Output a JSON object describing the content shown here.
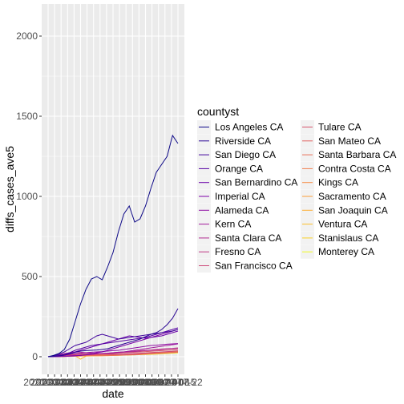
{
  "chart_data": {
    "type": "line",
    "xlabel": "date",
    "ylabel": "diffs_cases_ave5",
    "ylim": [
      -110,
      2200
    ],
    "yticks": [
      0,
      500,
      1000,
      1500,
      2000
    ],
    "ytick_labels": [
      "0",
      "500",
      "1000",
      "1500",
      "2000"
    ],
    "xtick_labels": [
      "2020-03-04",
      "2020-03-11",
      "2020-03-18",
      "2020-03-25",
      "2020-04-01",
      "2020-04-08",
      "2020-04-15",
      "2020-04-22",
      "2020-04-29",
      "2020-05-06",
      "2020-05-13",
      "2020-05-20",
      "2020-05-27",
      "2020-06-03",
      "2020-06-10",
      "2020-06-17",
      "2020-06-24",
      "2020-07-01",
      "2020-07-08",
      "2020-07-15",
      "2020-07-22"
    ],
    "grid": true,
    "legend": {
      "title": "countyst",
      "placement": "right"
    },
    "series": [
      {
        "name": "Los Angeles CA",
        "color": "#0d0887",
        "values": [
          0,
          8,
          20,
          45,
          110,
          220,
          330,
          420,
          485,
          500,
          480,
          560,
          650,
          780,
          890,
          940,
          840,
          860,
          940,
          1050,
          1150,
          1200,
          1250,
          1380,
          1330
        ]
      },
      {
        "name": "Riverside CA",
        "color": "#2a0593",
        "values": [
          0,
          2,
          5,
          10,
          18,
          28,
          35,
          38,
          40,
          42,
          45,
          50,
          60,
          70,
          80,
          90,
          100,
          110,
          125,
          140,
          150,
          170,
          200,
          240,
          300
        ]
      },
      {
        "name": "San Diego CA",
        "color": "#41049d",
        "values": [
          0,
          5,
          15,
          30,
          50,
          70,
          80,
          90,
          110,
          130,
          140,
          130,
          120,
          110,
          115,
          120,
          125,
          130,
          135,
          140,
          145,
          150,
          155,
          160,
          170
        ]
      },
      {
        "name": "Orange CA",
        "color": "#5601a4",
        "values": [
          0,
          3,
          8,
          15,
          25,
          40,
          50,
          60,
          70,
          75,
          80,
          85,
          90,
          95,
          100,
          105,
          110,
          115,
          120,
          130,
          140,
          150,
          160,
          170,
          180
        ]
      },
      {
        "name": "San Bernardino CA",
        "color": "#6a00a8",
        "values": [
          0,
          2,
          5,
          10,
          20,
          30,
          40,
          50,
          60,
          70,
          80,
          90,
          100,
          110,
          120,
          130,
          125,
          120,
          115,
          120,
          125,
          130,
          140,
          150,
          160
        ]
      },
      {
        "name": "Imperial CA",
        "color": "#7e03a8",
        "values": [
          0,
          0,
          1,
          2,
          3,
          5,
          8,
          12,
          18,
          25,
          30,
          40,
          50,
          60,
          70,
          80,
          90,
          100,
          110,
          120,
          130,
          140,
          150,
          160,
          170
        ]
      },
      {
        "name": "Alameda CA",
        "color": "#8f0da4",
        "values": [
          0,
          3,
          6,
          10,
          15,
          20,
          22,
          25,
          28,
          30,
          32,
          35,
          38,
          40,
          45,
          50,
          55,
          60,
          65,
          70,
          72,
          75,
          78,
          80,
          82
        ]
      },
      {
        "name": "Kern CA",
        "color": "#a11b9b",
        "values": [
          0,
          1,
          2,
          4,
          6,
          8,
          10,
          12,
          15,
          18,
          20,
          22,
          25,
          28,
          30,
          35,
          40,
          45,
          50,
          55,
          60,
          65,
          70,
          75,
          80
        ]
      },
      {
        "name": "Santa Clara CA",
        "color": "#b12a90",
        "values": [
          0,
          5,
          12,
          20,
          25,
          30,
          28,
          25,
          22,
          20,
          18,
          20,
          22,
          25,
          28,
          30,
          32,
          35,
          38,
          40,
          42,
          45,
          48,
          50,
          52
        ]
      },
      {
        "name": "Fresno CA",
        "color": "#bf3984",
        "values": [
          0,
          1,
          2,
          3,
          5,
          7,
          9,
          12,
          15,
          18,
          20,
          22,
          25,
          28,
          30,
          32,
          35,
          38,
          40,
          42,
          45,
          48,
          50,
          52,
          55
        ]
      },
      {
        "name": "San Francisco CA",
        "color": "#cc4778",
        "values": [
          0,
          3,
          6,
          10,
          12,
          15,
          18,
          20,
          22,
          20,
          18,
          16,
          15,
          15,
          16,
          18,
          20,
          22,
          24,
          26,
          28,
          30,
          32,
          34,
          36
        ]
      },
      {
        "name": "Tulare CA",
        "color": "#d6556d",
        "values": [
          0,
          0,
          1,
          2,
          4,
          6,
          8,
          10,
          12,
          14,
          16,
          18,
          20,
          22,
          24,
          26,
          28,
          30,
          32,
          34,
          36,
          38,
          40,
          42,
          44
        ]
      },
      {
        "name": "San Mateo CA",
        "color": "#e16462",
        "values": [
          0,
          2,
          4,
          6,
          8,
          10,
          12,
          14,
          15,
          16,
          15,
          14,
          13,
          12,
          13,
          14,
          15,
          16,
          17,
          18,
          20,
          22,
          24,
          26,
          28
        ]
      },
      {
        "name": "Santa Barbara CA",
        "color": "#e97158",
        "values": [
          0,
          1,
          2,
          3,
          5,
          8,
          10,
          9,
          8,
          7,
          6,
          7,
          8,
          9,
          10,
          11,
          12,
          14,
          16,
          18,
          20,
          22,
          24,
          26,
          28
        ]
      },
      {
        "name": "Contra Costa CA",
        "color": "#f07f4f",
        "values": [
          0,
          2,
          4,
          6,
          8,
          10,
          11,
          12,
          13,
          12,
          11,
          10,
          11,
          12,
          13,
          14,
          15,
          16,
          18,
          20,
          22,
          24,
          26,
          28,
          30
        ]
      },
      {
        "name": "Kings CA",
        "color": "#f68d45",
        "values": [
          0,
          0,
          0,
          1,
          2,
          3,
          4,
          5,
          6,
          7,
          8,
          9,
          10,
          12,
          14,
          16,
          18,
          20,
          22,
          24,
          26,
          28,
          30,
          32,
          34
        ]
      },
      {
        "name": "Sacramento CA",
        "color": "#fa9e3b",
        "values": [
          0,
          2,
          4,
          6,
          7,
          8,
          8,
          7,
          6,
          6,
          7,
          8,
          9,
          10,
          12,
          14,
          16,
          18,
          20,
          22,
          24,
          26,
          28,
          30,
          32
        ]
      },
      {
        "name": "San Joaquin CA",
        "color": "#fdad32",
        "values": [
          0,
          1,
          2,
          3,
          4,
          5,
          6,
          7,
          8,
          9,
          10,
          11,
          12,
          13,
          14,
          15,
          16,
          18,
          20,
          22,
          24,
          26,
          28,
          30,
          32
        ]
      },
      {
        "name": "Ventura CA",
        "color": "#fcbf2a",
        "values": [
          0,
          1,
          2,
          4,
          5,
          6,
          -15,
          4,
          5,
          6,
          7,
          8,
          9,
          10,
          11,
          12,
          13,
          14,
          16,
          18,
          20,
          22,
          24,
          26,
          28
        ]
      },
      {
        "name": "Stanislaus CA",
        "color": "#f9d124",
        "values": [
          0,
          1,
          2,
          3,
          4,
          5,
          6,
          6,
          7,
          7,
          8,
          8,
          9,
          10,
          11,
          12,
          13,
          14,
          15,
          16,
          18,
          20,
          22,
          24,
          26
        ]
      },
      {
        "name": "Monterey CA",
        "color": "#f0f921",
        "values": [
          0,
          0,
          1,
          2,
          3,
          4,
          5,
          5,
          6,
          6,
          7,
          7,
          8,
          9,
          10,
          11,
          12,
          13,
          14,
          15,
          16,
          18,
          20,
          22,
          24
        ]
      }
    ]
  }
}
